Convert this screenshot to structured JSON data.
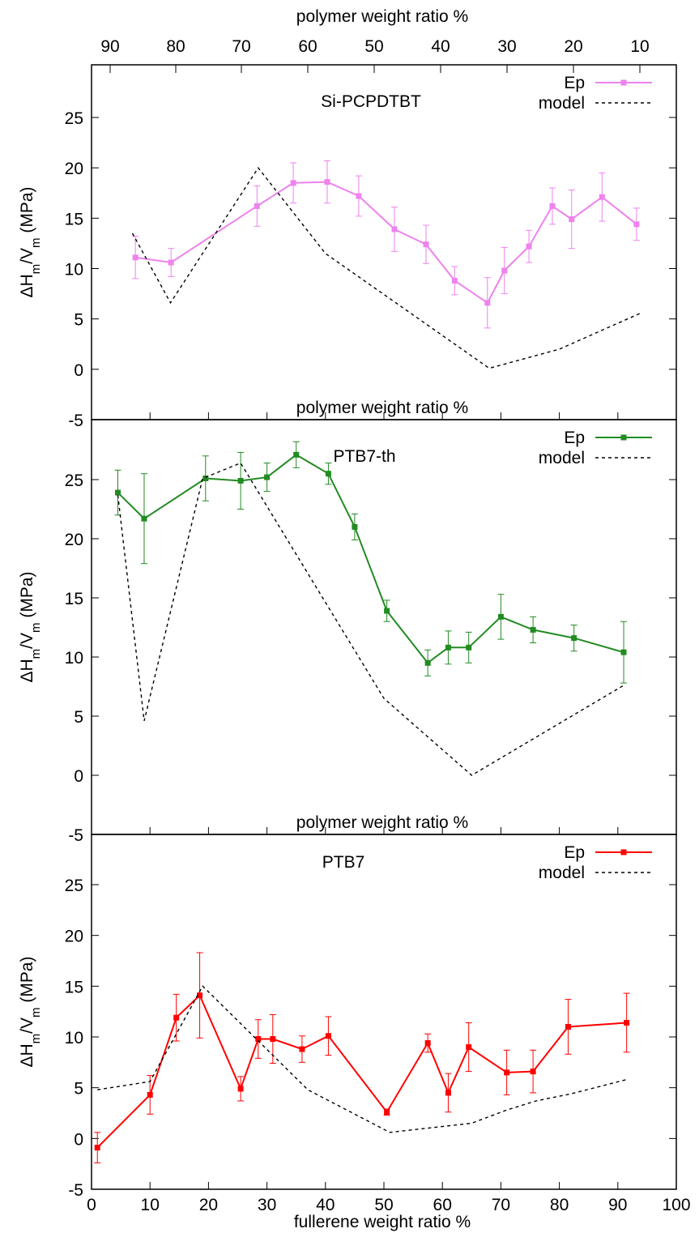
{
  "figure": {
    "top_axis_label": "polymer weight ratio %",
    "top_ticks": [
      "90",
      "80",
      "70",
      "60",
      "50",
      "40",
      "30",
      "20",
      "10"
    ],
    "bottom_axis_label": "fullerene weight ratio %"
  },
  "chart_data": [
    {
      "type": "line",
      "title": "Si-PCPDTBT",
      "ylabel_parts": [
        "ΔH",
        "m",
        "/V",
        "m",
        " (MPa)"
      ],
      "xlabel": "fullerene weight ratio %",
      "inner_label": "",
      "xlim": [
        0,
        100
      ],
      "ylim": [
        -5,
        30
      ],
      "yticks": [
        -5,
        0,
        5,
        10,
        15,
        20,
        25
      ],
      "series": [
        {
          "name": "Ep",
          "color": "#ee82ee",
          "marker": "square",
          "x": [
            7.5,
            13.6,
            28.3,
            34.5,
            40.3,
            45.7,
            51.8,
            57.2,
            62.1,
            67.7,
            70.6,
            74.8,
            78.8,
            82.1,
            87.3,
            93.2
          ],
          "y": [
            11.1,
            10.6,
            16.2,
            18.5,
            18.6,
            17.2,
            13.9,
            12.4,
            8.8,
            6.6,
            9.8,
            12.2,
            16.2,
            14.9,
            17.1,
            14.4
          ],
          "err": [
            2.1,
            1.4,
            2.0,
            2.0,
            2.1,
            2.0,
            2.2,
            1.9,
            1.4,
            2.5,
            2.3,
            1.6,
            1.8,
            2.9,
            2.4,
            1.6
          ]
        },
        {
          "name": "model",
          "color": "#000000",
          "style": "dashed",
          "x": [
            7.0,
            13.5,
            28.5,
            40.0,
            68.0,
            80.0,
            94.0
          ],
          "y": [
            13.5,
            6.6,
            20.0,
            11.5,
            0.1,
            2.0,
            5.6
          ]
        }
      ]
    },
    {
      "type": "line",
      "title": "PTB7-th",
      "ylabel_parts": [
        "ΔH",
        "m",
        "/V",
        "m",
        " (MPa)"
      ],
      "xlabel": "fullerene weight ratio %",
      "inner_label": "polymer weight ratio %",
      "xlim": [
        0,
        100
      ],
      "ylim": [
        -5,
        30
      ],
      "yticks": [
        -5,
        0,
        5,
        10,
        15,
        20,
        25
      ],
      "series": [
        {
          "name": "Ep",
          "color": "#228b22",
          "marker": "square",
          "x": [
            4.5,
            9.0,
            19.5,
            25.5,
            30.0,
            35.0,
            40.5,
            45.0,
            50.5,
            57.5,
            61.0,
            64.5,
            70.0,
            75.5,
            82.5,
            91.0
          ],
          "y": [
            23.9,
            21.7,
            25.1,
            24.9,
            25.2,
            27.1,
            25.5,
            21.0,
            13.9,
            9.5,
            10.8,
            10.8,
            13.4,
            12.3,
            11.6,
            10.4
          ],
          "err": [
            1.9,
            3.8,
            1.9,
            2.4,
            1.2,
            1.1,
            0.9,
            1.1,
            0.9,
            1.1,
            1.4,
            1.3,
            1.9,
            1.1,
            1.1,
            2.6
          ]
        },
        {
          "name": "model",
          "color": "#000000",
          "style": "dashed",
          "x": [
            4.5,
            9.0,
            19.0,
            25.5,
            50.0,
            65.0,
            91.0
          ],
          "y": [
            23.7,
            4.6,
            25.1,
            26.4,
            6.5,
            0.0,
            7.6
          ]
        }
      ]
    },
    {
      "type": "line",
      "title": "PTB7",
      "ylabel_parts": [
        "ΔH",
        "m",
        "/V",
        "m",
        " (MPa)"
      ],
      "xlabel": "fullerene weight ratio %",
      "inner_label": "polymer weight ratio %",
      "xlim": [
        0,
        100
      ],
      "ylim": [
        -5,
        30
      ],
      "yticks": [
        -5,
        0,
        5,
        10,
        15,
        20,
        25
      ],
      "xticks": [
        0,
        10,
        20,
        30,
        40,
        50,
        60,
        70,
        80,
        90,
        100
      ],
      "series": [
        {
          "name": "Ep",
          "color": "#ff0000",
          "marker": "square",
          "x": [
            1.0,
            10.0,
            14.5,
            18.5,
            25.5,
            28.5,
            31.0,
            36.0,
            40.5,
            50.5,
            57.5,
            61.0,
            64.5,
            71.0,
            75.5,
            81.5,
            91.5
          ],
          "y": [
            -0.9,
            4.3,
            11.9,
            14.1,
            4.9,
            9.8,
            9.8,
            8.8,
            10.1,
            2.6,
            9.4,
            4.5,
            9.0,
            6.5,
            6.6,
            11.0,
            11.4
          ],
          "err": [
            1.5,
            1.9,
            2.3,
            4.2,
            1.2,
            1.9,
            2.4,
            1.3,
            1.9,
            0.3,
            0.9,
            1.9,
            2.4,
            2.2,
            2.1,
            2.7,
            2.9
          ]
        },
        {
          "name": "model",
          "color": "#000000",
          "style": "dashed",
          "x": [
            1.0,
            10.0,
            19.0,
            37.0,
            51.0,
            65.0,
            71.0,
            76.0,
            82.0,
            91.5
          ],
          "y": [
            4.8,
            5.6,
            15.0,
            4.8,
            0.6,
            1.5,
            2.8,
            3.7,
            4.4,
            5.8
          ]
        }
      ]
    }
  ]
}
